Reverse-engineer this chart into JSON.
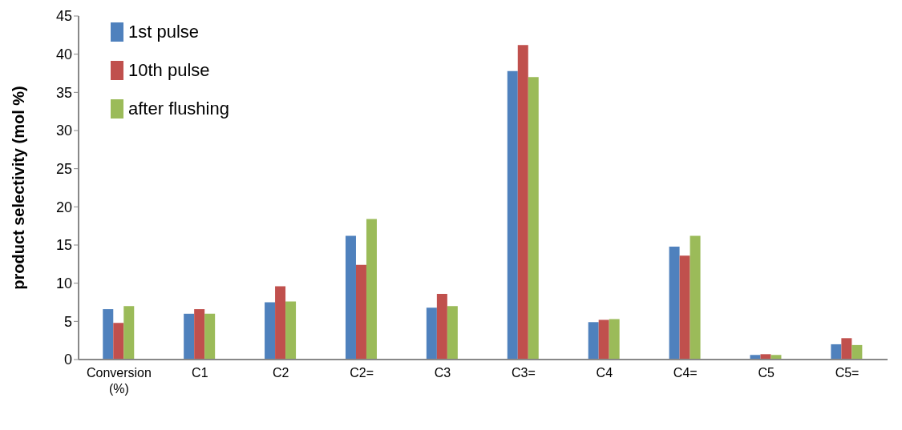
{
  "chart_data": {
    "type": "bar",
    "ylabel": "product selectivity (mol %)",
    "categories": [
      "Conversion (%)",
      "C1",
      "C2",
      "C2=",
      "C3",
      "C3=",
      "C4",
      "C4=",
      "C5",
      "C5="
    ],
    "series": [
      {
        "name": "1st pulse",
        "color": "#4f81bd",
        "values": [
          6.6,
          6.0,
          7.5,
          16.2,
          6.8,
          37.8,
          4.9,
          14.8,
          0.6,
          2.0
        ]
      },
      {
        "name": "10th pulse",
        "color": "#c0504d",
        "values": [
          4.8,
          6.6,
          9.6,
          12.4,
          8.6,
          41.2,
          5.2,
          13.6,
          0.7,
          2.8
        ]
      },
      {
        "name": "after flushing",
        "color": "#9bbb59",
        "values": [
          7.0,
          6.0,
          7.6,
          18.4,
          7.0,
          37.0,
          5.3,
          16.2,
          0.6,
          1.9
        ]
      }
    ],
    "ylim": [
      0,
      45
    ],
    "yticks": [
      0,
      5,
      10,
      15,
      20,
      25,
      30,
      35,
      40,
      45
    ],
    "grid": false,
    "legend": "top left"
  }
}
